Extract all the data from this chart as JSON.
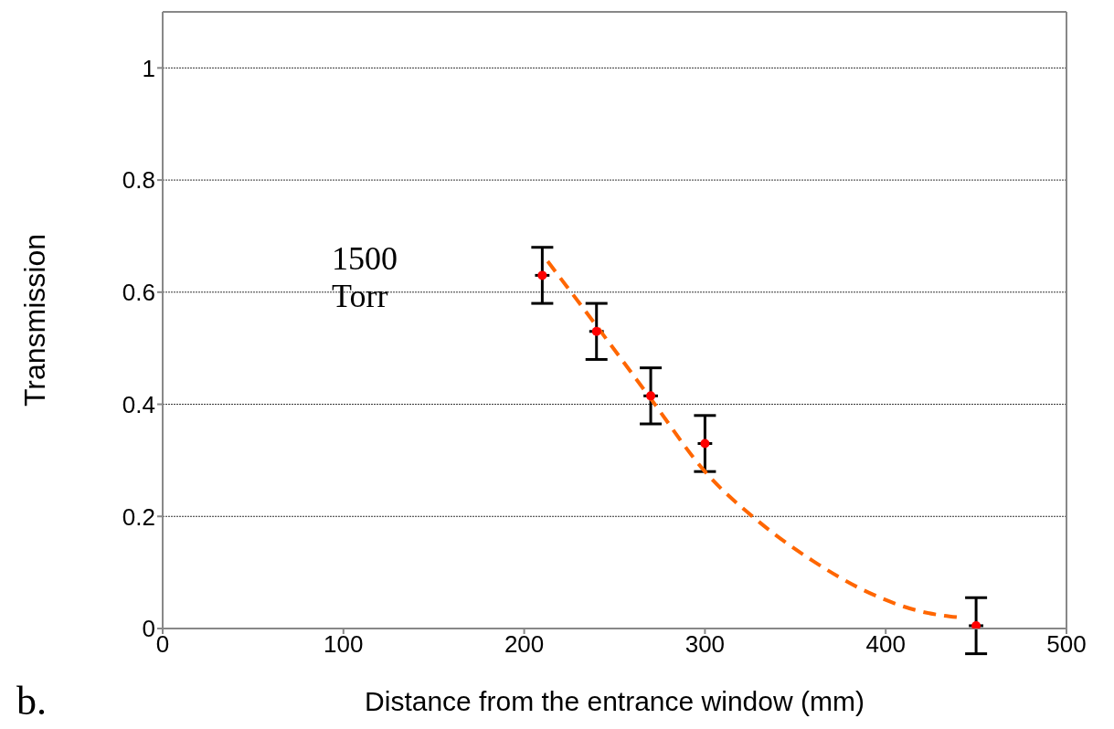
{
  "chart_data": {
    "type": "scatter",
    "xlabel": "Distance from the entrance window  (mm)",
    "ylabel": "Transmission",
    "xlim": [
      0,
      500
    ],
    "xticks": [
      0,
      100,
      200,
      300,
      400,
      500
    ],
    "ylim": [
      0,
      1.1
    ],
    "yticks": [
      0,
      0.2,
      0.4,
      0.6,
      0.8,
      1
    ],
    "grid": "y",
    "marker": "circle",
    "annotations": [
      "1500 Torr",
      "b."
    ],
    "series": [
      {
        "color": "#ff0000",
        "x": [
          210,
          240,
          270,
          300,
          450
        ],
        "values": [
          0.63,
          0.53,
          0.415,
          0.33,
          0.005
        ],
        "errors": [
          0.05,
          0.05,
          0.05,
          0.05,
          0.05
        ],
        "xerrors": [
          4,
          4,
          4,
          4,
          4
        ]
      },
      {
        "type": "line",
        "color": "#ff6600",
        "line_style": "dashed",
        "marker": "none",
        "x": [
          213,
          240,
          270,
          300,
          330,
          360,
          390,
          420,
          440
        ],
        "values": [
          0.655,
          0.54,
          0.41,
          0.28,
          0.19,
          0.12,
          0.065,
          0.03,
          0.02
        ]
      }
    ]
  }
}
